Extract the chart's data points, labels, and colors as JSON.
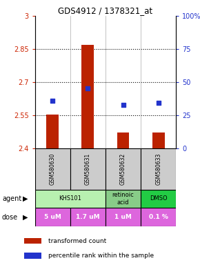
{
  "title": "GDS4912 / 1378321_at",
  "samples": [
    "GSM580630",
    "GSM580631",
    "GSM580632",
    "GSM580633"
  ],
  "bar_values": [
    2.553,
    2.868,
    2.473,
    2.473
  ],
  "bar_bottom": 2.4,
  "percentile_values": [
    2.617,
    2.672,
    2.597,
    2.607
  ],
  "ylim": [
    2.4,
    3.0
  ],
  "yticks_left": [
    2.4,
    2.55,
    2.7,
    2.85,
    3.0
  ],
  "yticks_left_labels": [
    "2.4",
    "2.55",
    "2.7",
    "2.85",
    "3"
  ],
  "yticks_right_labels": [
    "0",
    "25",
    "50",
    "75",
    "100%"
  ],
  "bar_color": "#bb2200",
  "dot_color": "#2233cc",
  "agent_groups": [
    [
      0,
      2,
      "KHS101",
      "#b8f0b0"
    ],
    [
      2,
      3,
      "retinoic\nacid",
      "#88cc88"
    ],
    [
      3,
      4,
      "DMSO",
      "#22cc44"
    ]
  ],
  "dose_labels": [
    "5 uM",
    "1.7 uM",
    "1 uM",
    "0.1 %"
  ],
  "dose_color": "#dd66dd",
  "dose_text_color": "#ffffff",
  "sample_bg": "#cccccc",
  "left_label_color": "#cc2200",
  "right_label_color": "#2233cc",
  "legend_bar_color": "#bb2200",
  "legend_dot_color": "#2233cc"
}
